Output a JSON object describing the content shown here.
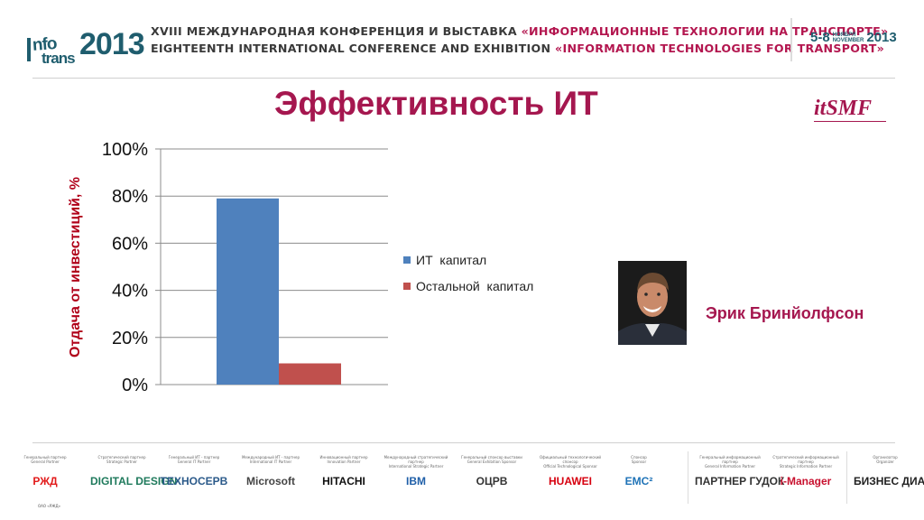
{
  "header": {
    "logo": {
      "prefix": "I",
      "info": "nfo",
      "trans": "trans",
      "year": "2013"
    },
    "line1_a": "XVIII МЕЖДУНАРОДНАЯ КОНФЕРЕНЦИЯ И ВЫСТАВКА ",
    "line1_b": "«ИНФОРМАЦИОННЫЕ ТЕХНОЛОГИИ НА ТРАНСПОРТЕ»",
    "line2_a": "EIGHTEENTH INTERNATIONAL CONFERENCE AND EXHIBITION ",
    "line2_b": "«INFORMATION TECHNOLOGIES FOR TRANSPORT»",
    "dates_days": "5-8",
    "dates_month_ru": "НОЯБРЯ",
    "dates_month_en": "NOVEMBER",
    "dates_year": "2013"
  },
  "slide": {
    "title": "Эффективность ИТ",
    "itsmf_logo": "itSMF",
    "speaker_name": "Эрик Бринйолфсон"
  },
  "chart_data": {
    "type": "bar",
    "title": "",
    "xlabel": "",
    "ylabel": "Отдача от инвестиций, %",
    "ylim": [
      0,
      100
    ],
    "yticks": [
      "0%",
      "20%",
      "40%",
      "60%",
      "80%",
      "100%"
    ],
    "grid": true,
    "legend_position": "right",
    "series": [
      {
        "name": "ИТ  капитал",
        "values": [
          79
        ],
        "color": "#4f81bd"
      },
      {
        "name": "Остальной  капитал",
        "values": [
          9
        ],
        "color": "#c0504d"
      }
    ]
  },
  "footer": {
    "sponsors": [
      {
        "caption": "Генеральный партнер\nGeneral Partner",
        "name": "РЖД",
        "color": "#e21a1a"
      },
      {
        "caption": "Стратегический партнер\nStrategic Partner",
        "name": "DIGITAL DESIGN",
        "color": "#1f7a5c"
      },
      {
        "caption": "Генеральный ИТ - партнер\nGeneral IT Partner",
        "name": "ТЕХНОСЕРВ",
        "color": "#2b5a8a"
      },
      {
        "caption": "Международный ИТ - партнер\nInternational IT Partner",
        "name": "Microsoft",
        "color": "#444444"
      },
      {
        "caption": "Инновационный партнер\nInnovation Partner",
        "name": "HITACHI",
        "color": "#111111"
      },
      {
        "caption": "Международный стратегический партнер\nInternational Strategic Partner",
        "name": "IBM",
        "color": "#1f5fa8"
      },
      {
        "caption": "Генеральный спонсор выставки\nGeneral Exhibition Sponsor",
        "name": "ОЦРВ",
        "color": "#333333"
      },
      {
        "caption": "Официальный технологический спонсор\nOfficial Technological Sponsor",
        "name": "HUAWEI",
        "color": "#d7000f"
      },
      {
        "caption": "Спонсор\nSponsor",
        "name": "EMC²",
        "color": "#1f73b7"
      },
      {
        "caption": "Генеральный информационный партнер\nGeneral Information Partner",
        "name": "ПАРТНЕР  ГУДОК",
        "color": "#333333"
      },
      {
        "caption": "Стратегический информационный партнер\nStrategic Information Partner",
        "name": "i-Manager",
        "color": "#c8102e"
      },
      {
        "caption": "Организатор\nOrganizer",
        "name": "БИЗНЕС ДИАЛОГ",
        "color": "#222222"
      }
    ],
    "rzd_sub": "ОАО «РЖД»"
  }
}
